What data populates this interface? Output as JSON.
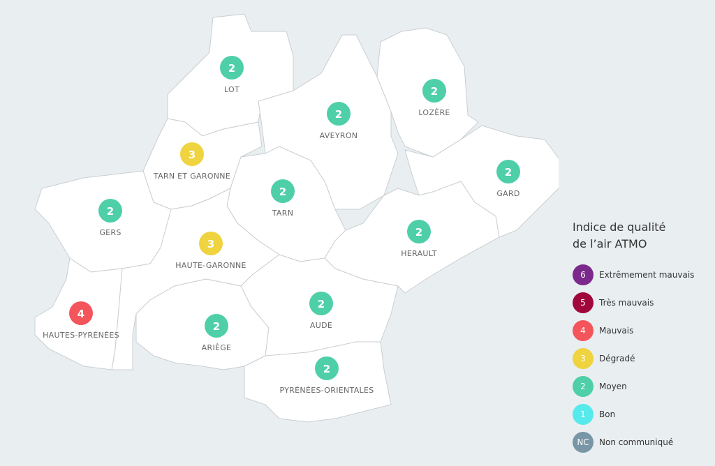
{
  "departments": [
    {
      "name": "LOT",
      "index": 2
    },
    {
      "name": "AVEYRON",
      "index": 2
    },
    {
      "name": "LOZÈRE",
      "index": 2
    },
    {
      "name": "TARN ET GARONNE",
      "index": 3
    },
    {
      "name": "GARD",
      "index": 2
    },
    {
      "name": "TARN",
      "index": 2
    },
    {
      "name": "GERS",
      "index": 2
    },
    {
      "name": "HAUTE-GARONNE",
      "index": 3
    },
    {
      "name": "HERAULT",
      "index": 2
    },
    {
      "name": "HAUTES-PYRÉNÉES",
      "index": 4
    },
    {
      "name": "AUDE",
      "index": 2
    },
    {
      "name": "ARIÈGE",
      "index": 2
    },
    {
      "name": "PYRÉNÉES-ORIENTALES",
      "index": 2
    }
  ],
  "legend": {
    "title": "Indice de qualité de l’air ATMO",
    "items": [
      {
        "level": 6,
        "label": "Extrêmement mauvais",
        "color": "#7b2a8c"
      },
      {
        "level": 5,
        "label": "Très mauvais",
        "color": "#a0073a"
      },
      {
        "level": 4,
        "label": "Mauvais",
        "color": "#f4555b"
      },
      {
        "level": 3,
        "label": "Dégradé",
        "color": "#efd33f"
      },
      {
        "level": 2,
        "label": "Moyen",
        "color": "#4ecfa8"
      },
      {
        "level": 1,
        "label": "Bon",
        "color": "#56eaec"
      },
      {
        "level": "NC",
        "label": "Non communiqué",
        "color": "#7896a5"
      }
    ]
  }
}
